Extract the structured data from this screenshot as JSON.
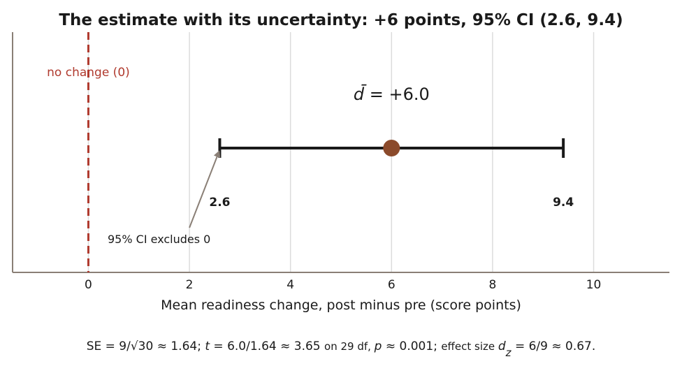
{
  "chart_data": {
    "type": "interval",
    "title": "The estimate with its uncertainty: +6 points, 95% CI (2.6, 9.4)",
    "xlabel": "Mean readiness change, post minus pre (score points)",
    "xlim": [
      -1.5,
      11.5
    ],
    "xticks": [
      0,
      2,
      4,
      6,
      8,
      10
    ],
    "grid": "vertical",
    "estimate": 6.0,
    "ci_low": 2.6,
    "ci_high": 9.4,
    "ci_low_label": "2.6",
    "ci_high_label": "9.4",
    "mean_label": "d̄ = +6.0",
    "reference_value": 0,
    "reference_label": "no change (0)",
    "annotation": "95% CI excludes 0",
    "footnote": {
      "se": "SE = 9/√30 ≈ 1.64; ",
      "t_var": "t",
      "t_expr": " = 6.0/1.64 ≈ 3.65 ",
      "df": "on 29 df, ",
      "p_var": "p",
      "p_expr": " ≈ 0.001; ",
      "effect": "effect size ",
      "d_var": "d",
      "d_sub": "z",
      "d_expr": " = 6/9 ≈ 0.67."
    },
    "colors": {
      "reference": "#b03a2e",
      "estimate_point": "#8b4a2b",
      "interval": "#1a1a1a",
      "grid": "#dcdcdc",
      "axis": "#8a7f76",
      "arrow": "#8a7f76"
    }
  }
}
